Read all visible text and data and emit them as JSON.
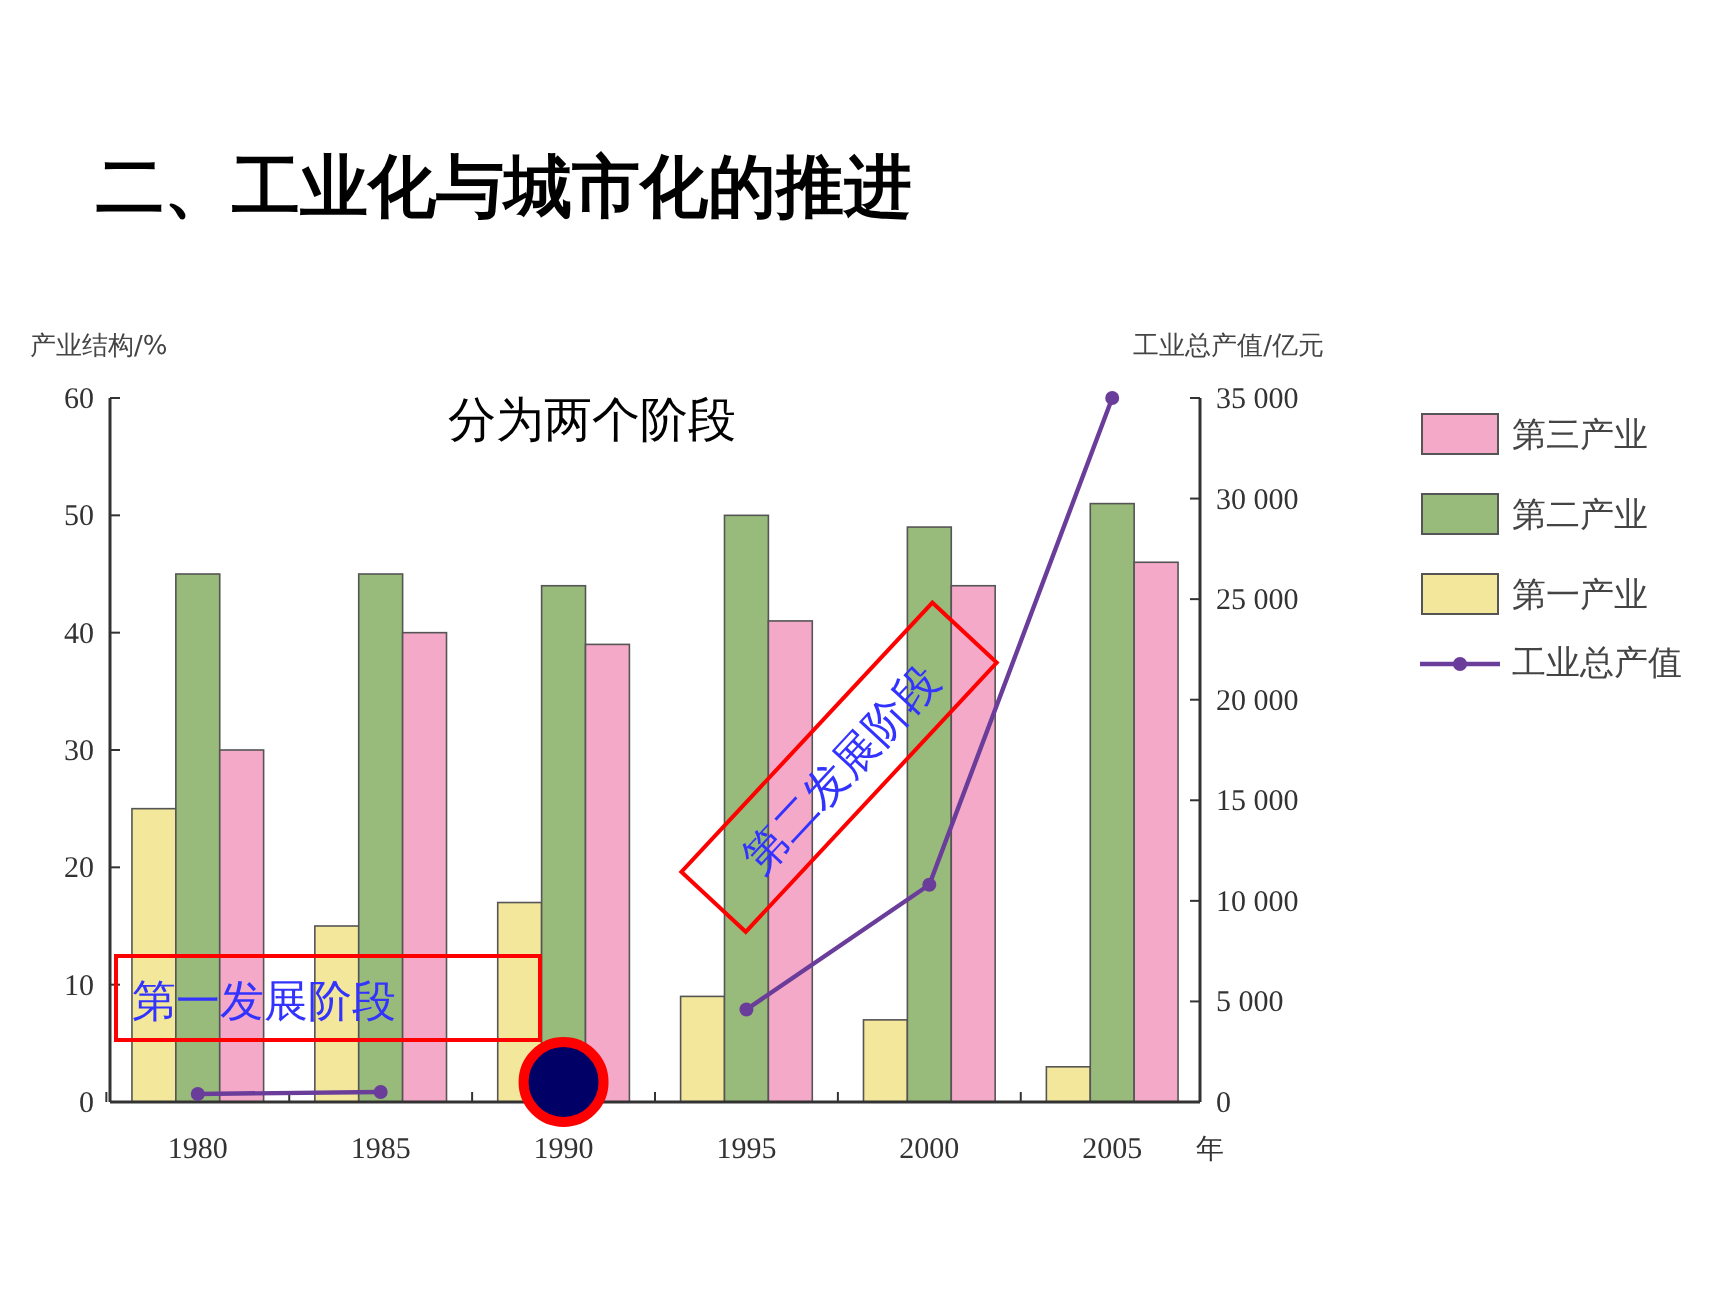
{
  "chart_data": {
    "type": "bar",
    "title": "二、工业化与城市化的推进",
    "ylabel": "产业结构/%",
    "y2label": "工业总产值/亿元",
    "xlabel": "年",
    "categories": [
      "1980",
      "1985",
      "1990",
      "1995",
      "2000",
      "2005"
    ],
    "series": [
      {
        "name": "第一产业",
        "color": "#f3e79b",
        "values": [
          25,
          15,
          17,
          9,
          7,
          3
        ]
      },
      {
        "name": "第二产业",
        "color": "#98bb7b",
        "values": [
          45,
          45,
          44,
          50,
          49,
          51
        ]
      },
      {
        "name": "第三产业",
        "color": "#f5a9c8",
        "values": [
          30,
          40,
          39,
          41,
          44,
          46
        ]
      },
      {
        "name": "工业总产值",
        "type": "line",
        "axis": "y2",
        "color": "#6a3d9a",
        "marker": "circle",
        "values": [
          400,
          500,
          null,
          4600,
          10800,
          35000
        ]
      }
    ],
    "ylim": [
      0,
      60
    ],
    "yticks": [
      0,
      10,
      20,
      30,
      40,
      50,
      60
    ],
    "y2lim": [
      0,
      35000
    ],
    "y2ticks": [
      {
        "value": 0,
        "label": "0"
      },
      {
        "value": 5000,
        "label": "5 000"
      },
      {
        "value": 10000,
        "label": "10 000"
      },
      {
        "value": 15000,
        "label": "15 000"
      },
      {
        "value": 20000,
        "label": "20 000"
      },
      {
        "value": 25000,
        "label": "25 000"
      },
      {
        "value": 30000,
        "label": "30 000"
      },
      {
        "value": 35000,
        "label": "35 000"
      }
    ],
    "legend": "right",
    "grid": false,
    "annotations": [
      "分为两个阶段",
      "第一发展阶段",
      "第二发展阶段"
    ]
  }
}
